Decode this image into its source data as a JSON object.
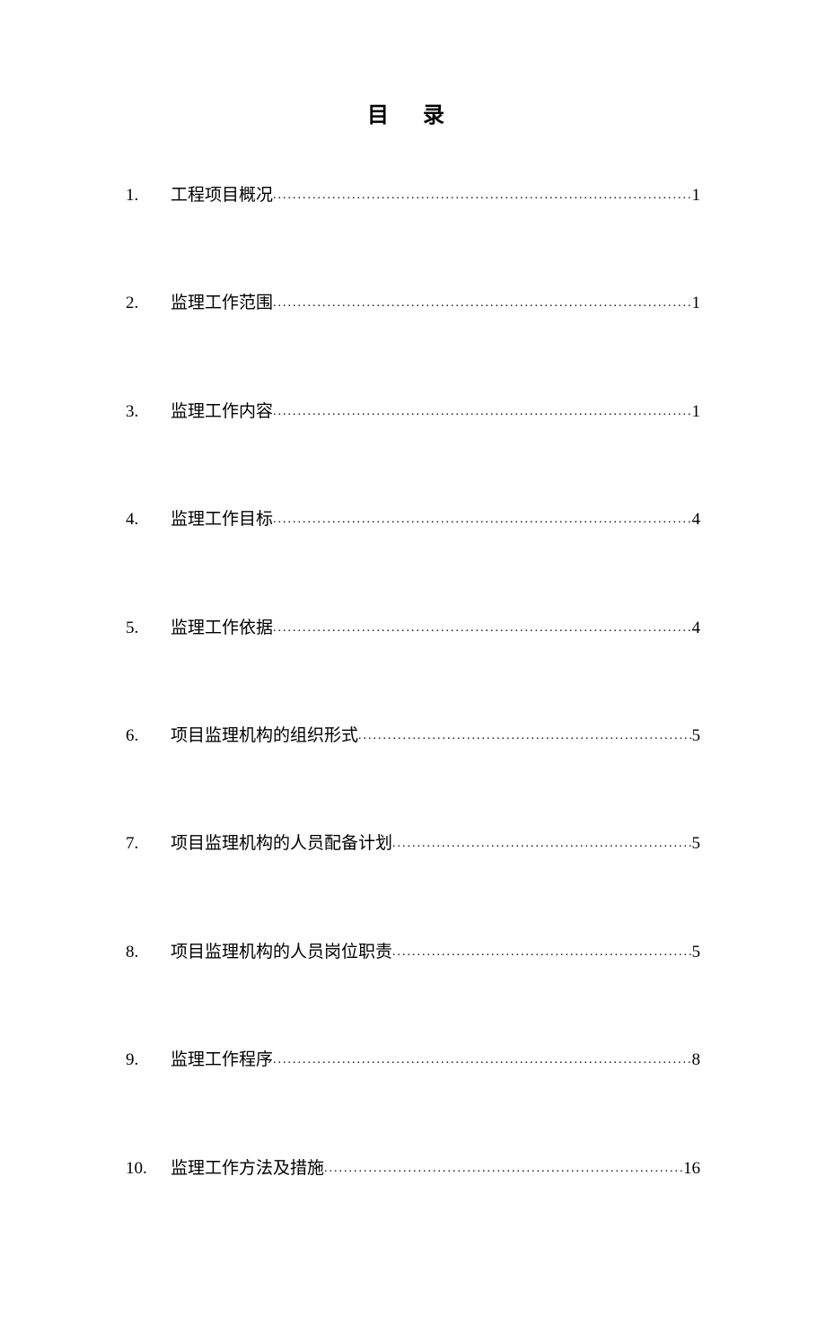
{
  "title": "目 录",
  "toc": {
    "font_size": 19,
    "title_font_size": 24,
    "text_color": "#000000",
    "background_color": "#ffffff",
    "entries": [
      {
        "number": "1.",
        "label": "工程项目概况",
        "page": "1"
      },
      {
        "number": "2.",
        "label": "监理工作范围",
        "page": "1"
      },
      {
        "number": "3.",
        "label": "监理工作内容",
        "page": "1"
      },
      {
        "number": "4.",
        "label": "监理工作目标",
        "page": "4"
      },
      {
        "number": "5.",
        "label": "监理工作依据",
        "page": "4"
      },
      {
        "number": "6.",
        "label": "项目监理机构的组织形式",
        "page": "5"
      },
      {
        "number": "7.",
        "label": "项目监理机构的人员配备计划",
        "page": "5"
      },
      {
        "number": "8.",
        "label": "项目监理机构的人员岗位职责",
        "page": "5"
      },
      {
        "number": "9.",
        "label": "监理工作程序",
        "page": "8"
      },
      {
        "number": "10.",
        "label": "监理工作方法及措施",
        "page": "16"
      }
    ]
  }
}
